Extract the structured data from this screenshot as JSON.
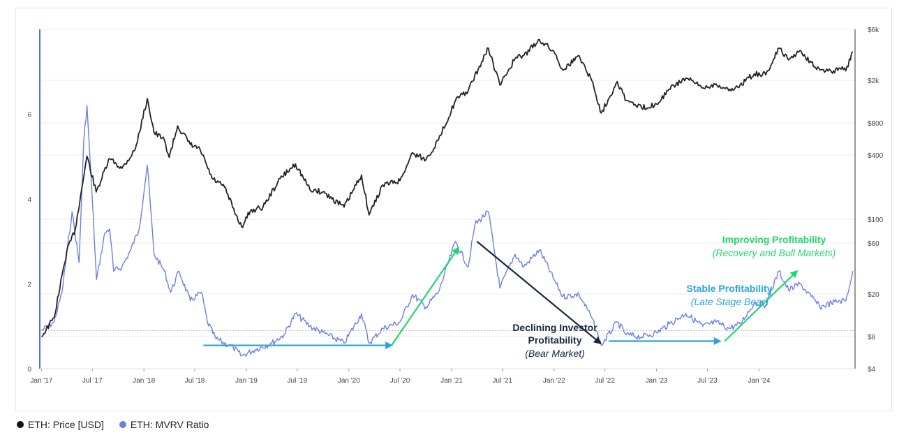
{
  "colors": {
    "price": "#222222",
    "mvrv": "#6c7ee6",
    "axis_accent": "#5569e8",
    "green": "#1fd86a",
    "blue": "#28a4e0",
    "navy": "#152740",
    "grid": "#eceef1",
    "ref_line": "#b5b5b5"
  },
  "chart_data": {
    "type": "line",
    "x_ticks": [
      "Jan '17",
      "Jul '17",
      "Jan '18",
      "Jul '18",
      "Jan '19",
      "Jul '19",
      "Jan '20",
      "Jul '20",
      "Jan '21",
      "Jul '21",
      "Jan '22",
      "Jul '22",
      "Jan '23",
      "Jul '23",
      "Jan '24"
    ],
    "left_axis": {
      "ticks": [
        "0",
        "2",
        "4",
        "6"
      ],
      "range": [
        0,
        8
      ]
    },
    "right_axis": {
      "scale": "log",
      "ticks": [
        "$4",
        "$8",
        "$20",
        "$60",
        "$100",
        "$400",
        "$800",
        "$2k",
        "$6k"
      ],
      "range": [
        4,
        6000
      ]
    },
    "reference_line": {
      "axis": "left",
      "value": 0.9
    },
    "series": [
      {
        "name": "ETH: Price [USD]",
        "axis": "right",
        "points": [
          [
            "2017-01-01",
            8
          ],
          [
            "2017-02-15",
            12
          ],
          [
            "2017-04-01",
            50
          ],
          [
            "2017-05-01",
            80
          ],
          [
            "2017-06-12",
            390
          ],
          [
            "2017-07-15",
            180
          ],
          [
            "2017-09-01",
            370
          ],
          [
            "2017-10-15",
            300
          ],
          [
            "2017-12-01",
            450
          ],
          [
            "2018-01-13",
            1350
          ],
          [
            "2018-02-06",
            650
          ],
          [
            "2018-03-15",
            550
          ],
          [
            "2018-04-01",
            380
          ],
          [
            "2018-05-01",
            750
          ],
          [
            "2018-06-15",
            500
          ],
          [
            "2018-07-20",
            450
          ],
          [
            "2018-09-01",
            240
          ],
          [
            "2018-10-15",
            200
          ],
          [
            "2018-11-25",
            110
          ],
          [
            "2018-12-15",
            85
          ],
          [
            "2019-01-15",
            120
          ],
          [
            "2019-03-01",
            130
          ],
          [
            "2019-05-01",
            240
          ],
          [
            "2019-06-25",
            330
          ],
          [
            "2019-08-15",
            190
          ],
          [
            "2019-10-01",
            180
          ],
          [
            "2019-12-15",
            130
          ],
          [
            "2020-02-15",
            260
          ],
          [
            "2020-03-13",
            110
          ],
          [
            "2020-05-01",
            210
          ],
          [
            "2020-07-01",
            230
          ],
          [
            "2020-08-15",
            420
          ],
          [
            "2020-10-01",
            360
          ],
          [
            "2020-11-15",
            550
          ],
          [
            "2021-01-15",
            1300
          ],
          [
            "2021-03-01",
            1600
          ],
          [
            "2021-05-12",
            4000
          ],
          [
            "2021-06-22",
            1800
          ],
          [
            "2021-08-15",
            3200
          ],
          [
            "2021-09-15",
            3400
          ],
          [
            "2021-11-10",
            4800
          ],
          [
            "2022-01-01",
            3700
          ],
          [
            "2022-02-01",
            2500
          ],
          [
            "2022-03-31",
            3400
          ],
          [
            "2022-05-15",
            2000
          ],
          [
            "2022-06-18",
            990
          ],
          [
            "2022-08-14",
            1950
          ],
          [
            "2022-09-15",
            1300
          ],
          [
            "2022-11-09",
            1100
          ],
          [
            "2023-01-01",
            1200
          ],
          [
            "2023-02-15",
            1650
          ],
          [
            "2023-04-15",
            2100
          ],
          [
            "2023-06-15",
            1700
          ],
          [
            "2023-08-01",
            1850
          ],
          [
            "2023-09-15",
            1600
          ],
          [
            "2023-10-25",
            1800
          ],
          [
            "2023-12-15",
            2300
          ],
          [
            "2024-01-25",
            2250
          ],
          [
            "2024-03-12",
            4000
          ],
          [
            "2024-04-15",
            3100
          ],
          [
            "2024-05-25",
            3800
          ],
          [
            "2024-07-05",
            2950
          ],
          [
            "2024-08-05",
            2500
          ],
          [
            "2024-09-15",
            2400
          ],
          [
            "2024-10-15",
            2600
          ],
          [
            "2024-11-05",
            2450
          ],
          [
            "2024-11-30",
            3700
          ]
        ]
      },
      {
        "name": "ETH: MVRV Ratio",
        "axis": "left",
        "points": [
          [
            "2017-01-01",
            0.9
          ],
          [
            "2017-02-15",
            1.1
          ],
          [
            "2017-03-15",
            1.8
          ],
          [
            "2017-04-20",
            3.7
          ],
          [
            "2017-05-15",
            2.5
          ],
          [
            "2017-06-01",
            5.4
          ],
          [
            "2017-06-12",
            6.2
          ],
          [
            "2017-07-01",
            4.0
          ],
          [
            "2017-07-16",
            2.1
          ],
          [
            "2017-08-15",
            3.2
          ],
          [
            "2017-09-01",
            3.3
          ],
          [
            "2017-09-15",
            2.3
          ],
          [
            "2017-10-15",
            2.4
          ],
          [
            "2017-11-15",
            2.8
          ],
          [
            "2017-12-15",
            3.3
          ],
          [
            "2018-01-13",
            4.8
          ],
          [
            "2018-02-06",
            2.7
          ],
          [
            "2018-03-15",
            2.3
          ],
          [
            "2018-04-06",
            1.8
          ],
          [
            "2018-05-06",
            2.3
          ],
          [
            "2018-06-15",
            1.6
          ],
          [
            "2018-07-25",
            1.8
          ],
          [
            "2018-08-15",
            1.1
          ],
          [
            "2018-09-15",
            0.7
          ],
          [
            "2018-11-15",
            0.5
          ],
          [
            "2018-12-15",
            0.3
          ],
          [
            "2019-02-01",
            0.45
          ],
          [
            "2019-04-01",
            0.6
          ],
          [
            "2019-05-15",
            0.8
          ],
          [
            "2019-06-25",
            1.3
          ],
          [
            "2019-08-15",
            1.0
          ],
          [
            "2019-10-01",
            0.85
          ],
          [
            "2019-12-15",
            0.6
          ],
          [
            "2020-02-15",
            1.3
          ],
          [
            "2020-03-13",
            0.6
          ],
          [
            "2020-05-01",
            0.95
          ],
          [
            "2020-07-01",
            1.1
          ],
          [
            "2020-08-15",
            1.75
          ],
          [
            "2020-10-01",
            1.45
          ],
          [
            "2020-11-15",
            1.8
          ],
          [
            "2021-01-15",
            3.0
          ],
          [
            "2021-03-01",
            2.4
          ],
          [
            "2021-03-25",
            3.4
          ],
          [
            "2021-05-12",
            3.7
          ],
          [
            "2021-06-22",
            1.9
          ],
          [
            "2021-08-15",
            2.7
          ],
          [
            "2021-09-15",
            2.4
          ],
          [
            "2021-11-10",
            2.8
          ],
          [
            "2022-01-01",
            2.1
          ],
          [
            "2022-02-01",
            1.7
          ],
          [
            "2022-03-31",
            1.75
          ],
          [
            "2022-05-15",
            1.2
          ],
          [
            "2022-06-18",
            0.55
          ],
          [
            "2022-08-14",
            1.1
          ],
          [
            "2022-09-15",
            0.8
          ],
          [
            "2022-11-09",
            0.75
          ],
          [
            "2023-01-01",
            0.85
          ],
          [
            "2023-02-15",
            1.05
          ],
          [
            "2023-04-15",
            1.3
          ],
          [
            "2023-06-15",
            1.0
          ],
          [
            "2023-08-01",
            1.1
          ],
          [
            "2023-09-15",
            0.95
          ],
          [
            "2023-10-25",
            1.05
          ],
          [
            "2023-12-15",
            1.55
          ],
          [
            "2024-01-25",
            1.5
          ],
          [
            "2024-03-12",
            2.3
          ],
          [
            "2024-04-15",
            1.85
          ],
          [
            "2024-05-25",
            2.0
          ],
          [
            "2024-07-05",
            1.7
          ],
          [
            "2024-08-05",
            1.45
          ],
          [
            "2024-09-15",
            1.55
          ],
          [
            "2024-10-15",
            1.6
          ],
          [
            "2024-11-05",
            1.6
          ],
          [
            "2024-11-30",
            2.3
          ]
        ]
      }
    ],
    "annotations": [
      {
        "title": "Improving Profitability",
        "subtitle": "(Recovery and Bull Markets)",
        "color": "green"
      },
      {
        "title": "Stable Profitability",
        "subtitle": "(Late Stage Bear)",
        "color": "blue"
      },
      {
        "title": "Declining Investor\nProfitability",
        "subtitle": "(Bear Market)",
        "color": "navy"
      }
    ],
    "arrows": [
      {
        "color": "blue",
        "from": [
          "2018-08-01",
          0.55
        ],
        "to": [
          "2020-06-01",
          0.55
        ]
      },
      {
        "color": "green",
        "from": [
          "2020-06-01",
          0.55
        ],
        "to": [
          "2021-01-25",
          2.85
        ]
      },
      {
        "color": "navy",
        "from": [
          "2021-04-01",
          3.0
        ],
        "to": [
          "2022-06-15",
          0.6
        ]
      },
      {
        "color": "blue",
        "from": [
          "2022-07-15",
          0.65
        ],
        "to": [
          "2023-08-15",
          0.65
        ]
      },
      {
        "color": "green",
        "from": [
          "2023-09-01",
          0.65
        ],
        "to": [
          "2024-05-15",
          2.3
        ]
      }
    ]
  },
  "legend": [
    {
      "label": "ETH: Price [USD]",
      "color": "#111111"
    },
    {
      "label": "ETH: MVRV Ratio",
      "color": "#6c7ee6"
    }
  ]
}
